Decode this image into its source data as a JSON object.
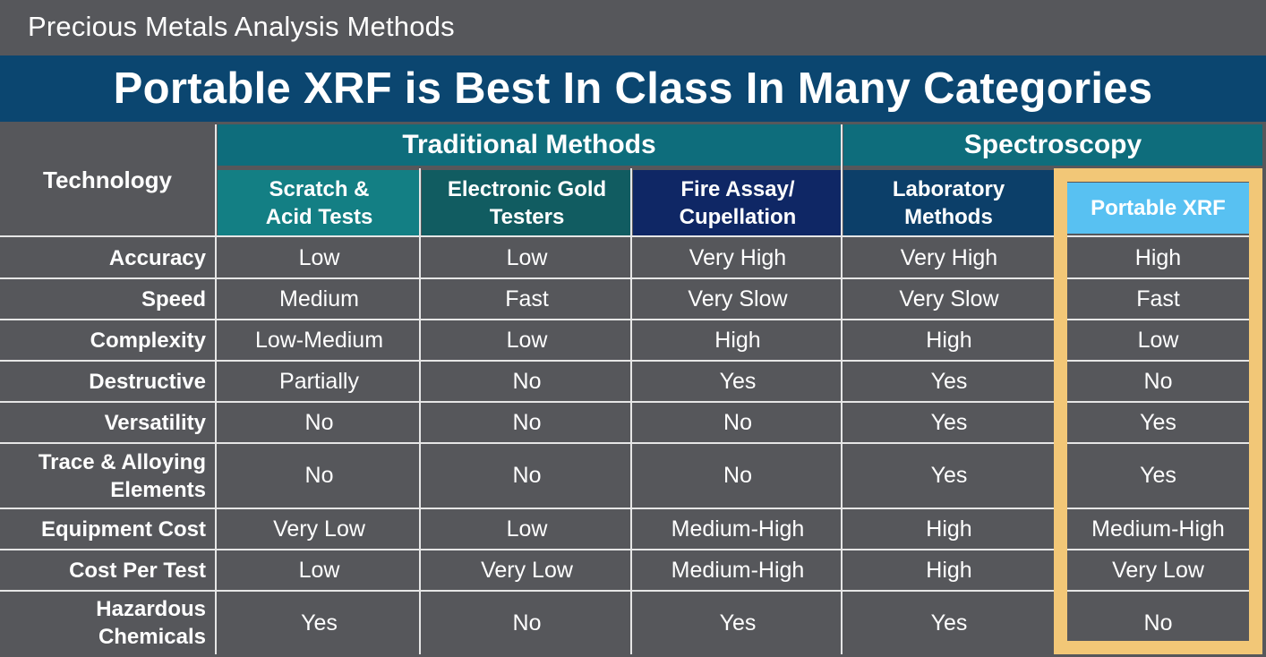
{
  "slide_title": "Precious Metals Analysis Methods",
  "banner": "Portable XRF is Best In Class In Many Categories",
  "header": {
    "technology": "Technology",
    "groups": {
      "traditional": "Traditional Methods",
      "spectroscopy": "Spectroscopy"
    },
    "columns": [
      {
        "line1": "Scratch &",
        "line2": "Acid Tests"
      },
      {
        "line1": "Electronic Gold",
        "line2": "Testers"
      },
      {
        "line1": "Fire Assay/",
        "line2": "Cupellation"
      },
      {
        "line1": "Laboratory",
        "line2": "Methods"
      },
      {
        "line1": "Portable XRF",
        "line2": ""
      }
    ]
  },
  "column_colors": [
    "#137f84",
    "#115c61",
    "#0f2765",
    "#0c3f69",
    "#58c1f2"
  ],
  "highlight_color": "#f2c777",
  "rows": [
    {
      "label1": "Accuracy",
      "label2": "",
      "values": [
        "Low",
        "Low",
        "Very High",
        "Very High",
        "High"
      ]
    },
    {
      "label1": "Speed",
      "label2": "",
      "values": [
        "Medium",
        "Fast",
        "Very Slow",
        "Very Slow",
        "Fast"
      ]
    },
    {
      "label1": "Complexity",
      "label2": "",
      "values": [
        "Low-Medium",
        "Low",
        "High",
        "High",
        "Low"
      ]
    },
    {
      "label1": "Destructive",
      "label2": "",
      "values": [
        "Partially",
        "No",
        "Yes",
        "Yes",
        "No"
      ]
    },
    {
      "label1": "Versatility",
      "label2": "",
      "values": [
        "No",
        "No",
        "No",
        "Yes",
        "Yes"
      ]
    },
    {
      "label1": "Trace & Alloying",
      "label2": "Elements",
      "values": [
        "No",
        "No",
        "No",
        "Yes",
        "Yes"
      ]
    },
    {
      "label1": "Equipment Cost",
      "label2": "",
      "values": [
        "Very Low",
        "Low",
        "Medium-High",
        "High",
        "Medium-High"
      ]
    },
    {
      "label1": "Cost Per Test",
      "label2": "",
      "values": [
        "Low",
        "Very Low",
        "Medium-High",
        "High",
        "Very Low"
      ]
    },
    {
      "label1": "Hazardous",
      "label2": "Chemicals",
      "values": [
        "Yes",
        "No",
        "Yes",
        "Yes",
        "No"
      ]
    }
  ]
}
